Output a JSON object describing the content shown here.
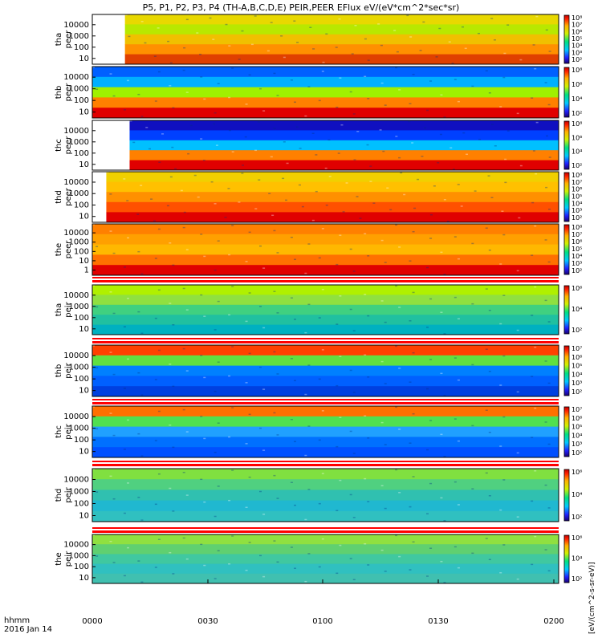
{
  "title": "P5, P1, P2, P3, P4 (TH-A,B,C,D,E) PEIR,PEER EFlux eV/(eV*cm^2*sec*sr)",
  "footer": {
    "time_format_label": "hhmm",
    "date_label": "2016 Jan 14",
    "x_ticks": [
      "0000",
      "0030",
      "0100",
      "0130",
      "0200"
    ]
  },
  "colorbar_unit_label": "[eV/(cm^2-s-sr-eV)]",
  "chart_data": {
    "type": "heatmap",
    "x_range_hhmm": [
      "0000",
      "0200"
    ],
    "y_scale": "log",
    "panels": [
      {
        "id": "tha-peer",
        "label": [
          "tha",
          "peer"
        ],
        "y_ticks": [
          "10",
          "100",
          "1000",
          "10000"
        ],
        "cbar_ticks": [
          "10²",
          "10³",
          "10⁴",
          "10⁵",
          "10⁶",
          "10⁷",
          "10⁸"
        ],
        "data_start_fraction": 0.07,
        "mode_bar": false
      },
      {
        "id": "thb-peer",
        "label": [
          "thb",
          "peer"
        ],
        "y_ticks": [
          "10",
          "100",
          "1000",
          "10000"
        ],
        "cbar_ticks": [
          "10²",
          "10⁴",
          "10⁶",
          "10⁸"
        ],
        "data_start_fraction": 0.0,
        "mode_bar": false
      },
      {
        "id": "thc-peer",
        "label": [
          "thc",
          "peer"
        ],
        "y_ticks": [
          "10",
          "100",
          "1000",
          "10000"
        ],
        "cbar_ticks": [
          "10²",
          "10⁴",
          "10⁶",
          "10⁸"
        ],
        "data_start_fraction": 0.08,
        "mode_bar": false
      },
      {
        "id": "thd-peer",
        "label": [
          "thd",
          "peer"
        ],
        "y_ticks": [
          "10",
          "100",
          "1000",
          "10000"
        ],
        "cbar_ticks": [
          "10²",
          "10³",
          "10⁴",
          "10⁵",
          "10⁶",
          "10⁷",
          "10⁸"
        ],
        "data_start_fraction": 0.03,
        "mode_bar": false
      },
      {
        "id": "the-peer",
        "label": [
          "the",
          "peer"
        ],
        "y_ticks": [
          "1",
          "10",
          "100",
          "1000",
          "10000"
        ],
        "cbar_ticks": [
          "10²",
          "10³",
          "10⁴",
          "10⁵",
          "10⁶",
          "10⁷",
          "10⁸"
        ],
        "data_start_fraction": 0.0,
        "mode_bar": false
      },
      {
        "id": "tha-peir",
        "label": [
          "tha",
          "peir"
        ],
        "y_ticks": [
          "10",
          "100",
          "1000",
          "10000"
        ],
        "cbar_ticks": [
          "10²",
          "10⁴",
          "10⁶"
        ],
        "data_start_fraction": 0.0,
        "mode_bar": true
      },
      {
        "id": "thb-peir",
        "label": [
          "thb",
          "peir"
        ],
        "y_ticks": [
          "10",
          "100",
          "1000",
          "10000"
        ],
        "cbar_ticks": [
          "10²",
          "10³",
          "10⁴",
          "10⁵",
          "10⁶",
          "10⁷"
        ],
        "data_start_fraction": 0.0,
        "mode_bar": true
      },
      {
        "id": "thc-peir",
        "label": [
          "thc",
          "peir"
        ],
        "y_ticks": [
          "10",
          "100",
          "1000",
          "10000"
        ],
        "cbar_ticks": [
          "10²",
          "10³",
          "10⁴",
          "10⁵",
          "10⁶",
          "10⁷"
        ],
        "data_start_fraction": 0.0,
        "mode_bar": true
      },
      {
        "id": "thd-peir",
        "label": [
          "thd",
          "peir"
        ],
        "y_ticks": [
          "10",
          "100",
          "1000",
          "10000"
        ],
        "cbar_ticks": [
          "10²",
          "10⁴",
          "10⁶"
        ],
        "data_start_fraction": 0.0,
        "mode_bar": true
      },
      {
        "id": "the-peir",
        "label": [
          "the",
          "peir"
        ],
        "y_ticks": [
          "10",
          "100",
          "1000",
          "10000"
        ],
        "cbar_ticks": [
          "10²",
          "10⁴",
          "10⁶"
        ],
        "data_start_fraction": 0.0,
        "mode_bar": true
      }
    ]
  }
}
